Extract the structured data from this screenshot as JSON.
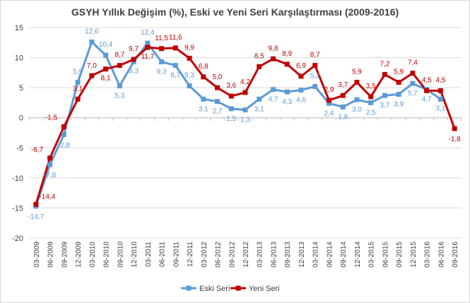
{
  "chart_data": {
    "type": "line",
    "title": "GSYH Yıllık Değişim (%), Eski ve Yeni Seri Karşılaştırması (2009-2016)",
    "xlabel": "",
    "ylabel": "",
    "ylim": [
      -20,
      15
    ],
    "yticks": [
      -20,
      -15,
      -10,
      -5,
      0,
      5,
      10,
      15
    ],
    "grid": true,
    "legend_position": "bottom",
    "categories": [
      "03-2009",
      "06-2009",
      "09-2009",
      "12-2009",
      "03-2010",
      "06-2010",
      "09-2010",
      "12-2010",
      "03-2011",
      "06-2011",
      "09-2011",
      "12-2011",
      "03-2012",
      "06-2012",
      "09-2012",
      "12-2012",
      "03-2013",
      "06-2013",
      "09-2013",
      "12-2013",
      "03-2014",
      "06-2014",
      "09-2014",
      "12-2014",
      "03-2015",
      "06-2015",
      "09-2015",
      "12-2015",
      "03-2016",
      "06-2016",
      "09-2016"
    ],
    "series": [
      {
        "name": "Eski Seri",
        "color": "#5b9bd5",
        "values": [
          -14.7,
          -7.8,
          -2.8,
          5.9,
          12.6,
          10.4,
          5.3,
          9.3,
          12.4,
          9.3,
          8.7,
          5.3,
          3.1,
          2.7,
          1.5,
          1.3,
          3.1,
          4.7,
          4.3,
          4.6,
          5.2,
          2.4,
          1.8,
          3.0,
          2.5,
          3.7,
          3.9,
          5.7,
          4.7,
          3.1,
          null
        ],
        "labels": [
          "-14,7",
          "-7,8",
          "-2,8",
          "5,9",
          "12,6",
          "10,4",
          "5,3",
          "9,3",
          "12,4",
          "9,3",
          "8,7",
          "5,3",
          "3,1",
          "2,7",
          "1,5",
          "1,3",
          "3,1",
          "4,7",
          "4,3",
          "4,6",
          "5,2",
          "2,4",
          "1,8",
          "3,0",
          "2,5",
          "3,7",
          "3,9",
          "5,7",
          "4,7",
          "3,1",
          ""
        ]
      },
      {
        "name": "Yeni Seri",
        "color": "#c00000",
        "values": [
          -14.4,
          -6.7,
          -1.5,
          3.1,
          7.0,
          8.1,
          8.7,
          9.7,
          11.7,
          11.5,
          11.6,
          9.9,
          6.8,
          5.0,
          3.6,
          4.2,
          8.5,
          9.8,
          8.9,
          6.9,
          8.7,
          2.9,
          3.7,
          5.9,
          3.5,
          7.2,
          5.9,
          7.4,
          4.5,
          4.5,
          -1.8
        ],
        "labels": [
          "-14,4",
          "-6,7",
          "-1,5",
          "3,1",
          "7,0",
          "8,1",
          "8,7",
          "9,7",
          "11,7",
          "11,5",
          "11,6",
          "9,9",
          "6,8",
          "5,0",
          "3,6",
          "4,2",
          "8,5",
          "9,8",
          "8,9",
          "6,9",
          "8,7",
          "2,9",
          "3,7",
          "5,9",
          "3,5",
          "7,2",
          "5,9",
          "7,4",
          "4,5",
          "4,5",
          "-1,8"
        ]
      }
    ]
  }
}
